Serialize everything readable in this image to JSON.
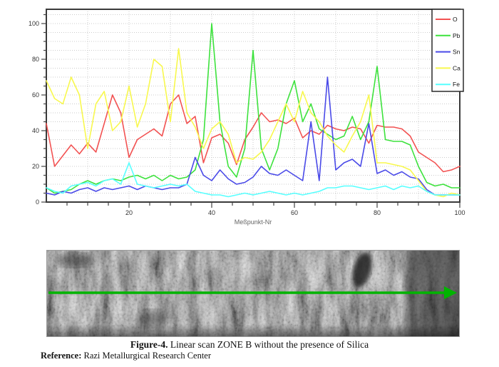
{
  "figure": {
    "caption_label": "Figure-4.",
    "caption_text": " Linear scan ZONE B without the presence of Silica",
    "reference_label": "Reference:",
    "reference_text": " Razi Metallurgical Research Center"
  },
  "chart_data": {
    "type": "line",
    "title": "",
    "xlabel": "Meßpunkt-Nr",
    "ylabel": "",
    "xlim": [
      0,
      100
    ],
    "ylim": [
      0,
      108
    ],
    "x_step": 2,
    "xticks_labeled": [
      20,
      40,
      60,
      80,
      100
    ],
    "yticks_labeled": [
      0,
      20,
      40,
      60,
      80,
      100
    ],
    "minor_tick_step": 5,
    "grid": {
      "horizontal_step": 5,
      "vertical_step": 10,
      "style": "dotted",
      "color": "#cccccc"
    },
    "legend_position": "top-right",
    "frame_color": "#3a3a3a",
    "series": [
      {
        "name": "O",
        "color": "#f25252",
        "values": [
          44,
          20,
          26,
          32,
          27,
          33,
          28,
          44,
          60,
          50,
          25,
          35,
          38,
          41,
          37,
          55,
          60,
          44,
          48,
          22,
          36,
          38,
          33,
          21,
          35,
          42,
          50,
          45,
          46,
          44,
          47,
          36,
          40,
          38,
          43,
          41,
          40,
          42,
          41,
          33,
          43,
          42,
          42,
          41,
          37,
          28,
          25,
          22,
          17,
          18,
          20
        ]
      },
      {
        "name": "Pb",
        "color": "#3de23d",
        "values": [
          8,
          5,
          6,
          7,
          10,
          12,
          10,
          12,
          13,
          12,
          14,
          15,
          13,
          15,
          12,
          15,
          13,
          14,
          18,
          35,
          100,
          45,
          20,
          14,
          30,
          85,
          30,
          18,
          30,
          55,
          68,
          45,
          55,
          41,
          38,
          35,
          37,
          48,
          35,
          45,
          76,
          35,
          34,
          34,
          32,
          20,
          11,
          9,
          10,
          8,
          8
        ]
      },
      {
        "name": "Sn",
        "color": "#4a4ae8",
        "values": [
          5,
          4,
          6,
          5,
          7,
          8,
          6,
          8,
          7,
          8,
          9,
          7,
          9,
          8,
          7,
          8,
          8,
          10,
          25,
          15,
          12,
          18,
          13,
          10,
          11,
          14,
          20,
          16,
          15,
          18,
          15,
          12,
          45,
          12,
          70,
          18,
          22,
          24,
          20,
          44,
          16,
          18,
          15,
          17,
          14,
          13,
          7,
          4,
          4,
          4,
          4
        ]
      },
      {
        "name": "Ca",
        "color": "#f8f84e",
        "values": [
          68,
          58,
          55,
          70,
          60,
          30,
          55,
          62,
          40,
          45,
          65,
          42,
          55,
          80,
          76,
          45,
          86,
          50,
          42,
          30,
          41,
          45,
          38,
          22,
          25,
          24,
          28,
          35,
          45,
          55,
          45,
          62,
          50,
          45,
          37,
          32,
          28,
          37,
          45,
          60,
          22,
          22,
          21,
          20,
          18,
          12,
          6,
          4,
          3,
          5,
          4
        ]
      },
      {
        "name": "Fe",
        "color": "#57ffff",
        "values": [
          8,
          6,
          5,
          9,
          10,
          11,
          9,
          12,
          13,
          10,
          22,
          10,
          9,
          8,
          9,
          10,
          9,
          10,
          6,
          5,
          4,
          4,
          3,
          4,
          5,
          4,
          5,
          6,
          5,
          4,
          5,
          4,
          5,
          6,
          8,
          8,
          9,
          9,
          8,
          7,
          8,
          9,
          7,
          9,
          8,
          9,
          6,
          4,
          4,
          4,
          4
        ]
      }
    ]
  },
  "sem_image": {
    "description": "SEM micrograph of ZONE B with horizontal linear-scan arrow",
    "scan_line_color": "#00b400"
  }
}
